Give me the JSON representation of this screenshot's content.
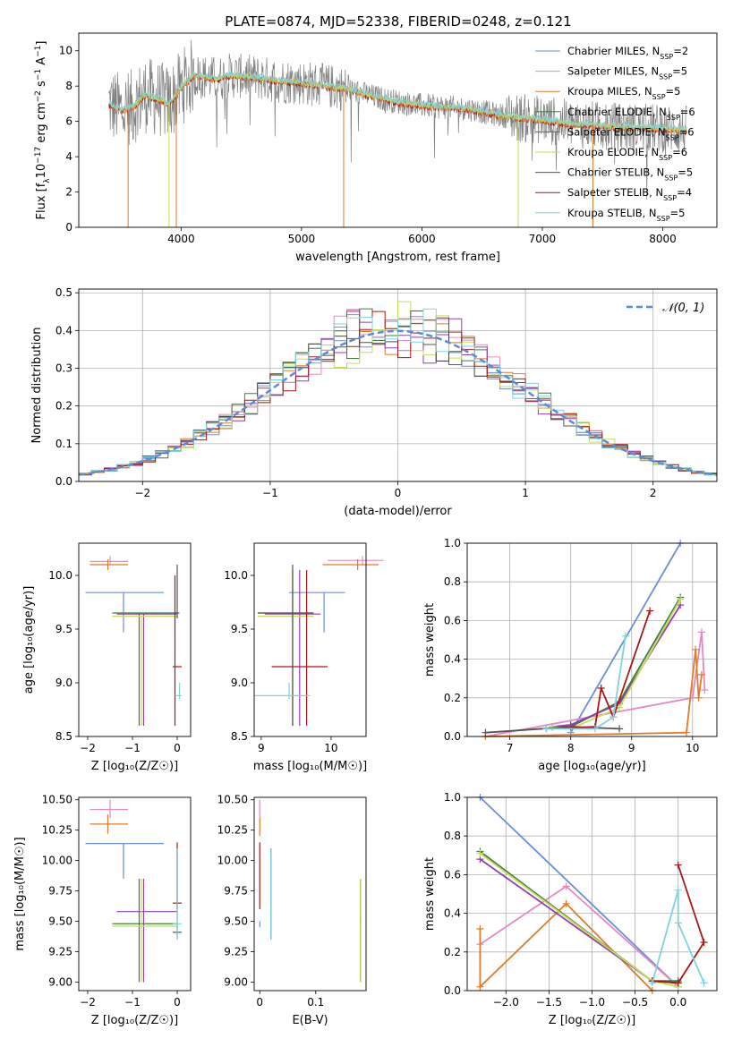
{
  "figure": {
    "title": "PLATE=0874, MJD=52338, FIBERID=0248, z=0.121"
  },
  "colors": {
    "Chabrier MILES": "#6a8fd6",
    "Salpeter MILES": "#e58ac0",
    "Kroupa MILES": "#e07b2a",
    "Chabrier ELODIE": "#3f7d3f",
    "Salpeter ELODIE": "#8e3fb0",
    "Kroupa ELODIE": "#c5dd55",
    "Chabrier STELIB": "#555555",
    "Salpeter STELIB": "#a81818",
    "Kroupa STELIB": "#7fd3dd"
  },
  "chart_data": [
    {
      "id": "spectrum",
      "type": "line",
      "xlabel": "wavelength [Angstrom, rest frame]",
      "ylabel": "Flux [f_λ 10^-17 erg cm^-2 s^-1 A^-1]",
      "xlim": [
        3150,
        8450
      ],
      "ylim": [
        0,
        11
      ],
      "xticks": [
        4000,
        5000,
        6000,
        7000,
        8000
      ],
      "yticks": [
        0,
        2,
        4,
        6,
        8,
        10
      ],
      "legend_placement": "top-right",
      "series": [
        {
          "name": "Chabrier MILES, N_SSP=2"
        },
        {
          "name": "Salpeter MILES, N_SSP=5"
        },
        {
          "name": "Kroupa MILES, N_SSP=5"
        },
        {
          "name": "Chabrier ELODIE, N_SSP=6"
        },
        {
          "name": "Salpeter ELODIE, N_SSP=6"
        },
        {
          "name": "Kroupa ELODIE, N_SSP=6"
        },
        {
          "name": "Chabrier STELIB, N_SSP=5"
        },
        {
          "name": "Salpeter STELIB, N_SSP=4"
        },
        {
          "name": "Kroupa STELIB, N_SSP=5"
        }
      ],
      "continuum": [
        [
          3400,
          7.0
        ],
        [
          3500,
          6.6
        ],
        [
          3600,
          6.8
        ],
        [
          3700,
          7.5
        ],
        [
          3800,
          7.3
        ],
        [
          3900,
          7.0
        ],
        [
          4000,
          7.9
        ],
        [
          4100,
          8.6
        ],
        [
          4200,
          8.5
        ],
        [
          4300,
          8.4
        ],
        [
          4400,
          8.6
        ],
        [
          4600,
          8.5
        ],
        [
          4800,
          8.3
        ],
        [
          5000,
          8.2
        ],
        [
          5200,
          8.0
        ],
        [
          5400,
          7.8
        ],
        [
          5600,
          7.4
        ],
        [
          5800,
          7.1
        ],
        [
          6000,
          6.9
        ],
        [
          6200,
          6.8
        ],
        [
          6400,
          6.7
        ],
        [
          6600,
          6.4
        ],
        [
          6800,
          6.2
        ],
        [
          7000,
          6.1
        ],
        [
          7200,
          5.9
        ],
        [
          7400,
          5.8
        ],
        [
          7600,
          5.7
        ],
        [
          8000,
          5.6
        ],
        [
          8200,
          5.5
        ]
      ],
      "data_range": [
        3400,
        8200
      ]
    },
    {
      "id": "residuals",
      "type": "histogram",
      "xlabel": "(data-model)/error",
      "ylabel": "Normed distribution",
      "xlim": [
        -2.5,
        2.5
      ],
      "ylim": [
        0,
        0.51
      ],
      "xticks": [
        -2,
        -1,
        0,
        1,
        2
      ],
      "yticks": [
        0.0,
        0.1,
        0.2,
        0.3,
        0.4,
        0.5
      ],
      "grid": true,
      "legend_placement": "top-right",
      "legend": "𝒩(0, 1)",
      "bin_width": 0.1
    },
    {
      "id": "age-vs-Z",
      "type": "scatter",
      "xlabel": "Z [log10(Z/Z☉)]",
      "ylabel": "age [log10(age/yr)]",
      "xlim": [
        -2.2,
        0.3
      ],
      "ylim": [
        8.5,
        10.3
      ],
      "xticks": [
        -2,
        -1,
        0
      ],
      "yticks": [
        8.5,
        9.0,
        9.5,
        10.0
      ]
    },
    {
      "id": "age-vs-mass",
      "type": "scatter",
      "xlabel": "mass [log10(M/M☉)]",
      "ylabel": "",
      "xlim": [
        8.9,
        10.5
      ],
      "ylim": [
        8.5,
        10.3
      ],
      "xticks": [
        9,
        10
      ],
      "yticks": [
        8.5,
        9.0,
        9.5,
        10.0
      ]
    },
    {
      "id": "weight-vs-age",
      "type": "line",
      "xlabel": "age [log10(age/yr)]",
      "ylabel": "mass weight",
      "xlim": [
        6.3,
        10.4
      ],
      "ylim": [
        0,
        1.0
      ],
      "xticks": [
        7,
        8,
        9,
        10
      ],
      "yticks": [
        0.0,
        0.2,
        0.4,
        0.6,
        0.8,
        1.0
      ],
      "grid": true
    },
    {
      "id": "mass-vs-Z",
      "type": "scatter",
      "xlabel": "Z [log10(Z/Z☉)]",
      "ylabel": "mass [log10(M/M☉)]",
      "xlim": [
        -2.2,
        0.3
      ],
      "ylim": [
        8.93,
        10.52
      ],
      "xticks": [
        -2,
        -1,
        0
      ],
      "yticks": [
        9.0,
        9.25,
        9.5,
        9.75,
        10.0,
        10.25,
        10.5
      ]
    },
    {
      "id": "mass-vs-ebv",
      "type": "scatter",
      "xlabel": "E(B-V)",
      "ylabel": "",
      "xlim": [
        -0.01,
        0.19
      ],
      "ylim": [
        8.93,
        10.52
      ],
      "xticks": [
        0.0,
        0.1
      ],
      "yticks": [
        9.0,
        9.25,
        9.5,
        9.75,
        10.0,
        10.25,
        10.5
      ]
    },
    {
      "id": "weight-vs-Z",
      "type": "line",
      "xlabel": "Z [log10(Z/Z☉)]",
      "ylabel": "mass weight",
      "xlim": [
        -2.45,
        0.45
      ],
      "ylim": [
        0,
        1.0
      ],
      "xticks": [
        -2.0,
        -1.5,
        -1.0,
        -0.5,
        0.0
      ],
      "yticks": [
        0.0,
        0.2,
        0.4,
        0.6,
        0.8,
        1.0
      ],
      "grid": true
    }
  ],
  "models": [
    {
      "name": "Chabrier MILES",
      "age_Z": {
        "age": 9.84,
        "age_err": [
          9.47,
          9.84
        ],
        "Z": -1.2,
        "Z_err": [
          -2.05,
          -0.3
        ]
      },
      "age_mass": {
        "mass": 9.9,
        "mass_err": [
          9.85,
          10.15
        ],
        "age": 9.84,
        "age_err": [
          9.47,
          9.84
        ]
      },
      "mass_Z": {
        "mass": 10.14,
        "mass_err": [
          9.85,
          10.14
        ],
        "Z": -1.2,
        "Z_err": [
          -2.05,
          -0.3
        ]
      },
      "mass_ebv": {
        "mass": 9.5,
        "mass_err": [
          9.45,
          9.5
        ],
        "ebv": 0.0
      },
      "weights_age": [
        [
          8.0,
          0.02
        ],
        [
          9.8,
          1.0
        ]
      ],
      "weights_Z": [
        [
          -2.3,
          1.0
        ],
        [
          0.0,
          0.02
        ]
      ]
    },
    {
      "name": "Salpeter MILES",
      "age_Z": {
        "age": 10.13,
        "age_err": [
          10.1,
          10.18
        ],
        "Z": -1.5,
        "Z_err": [
          -1.95,
          -1.1
        ]
      },
      "age_mass": {
        "mass": 10.45,
        "mass_err": [
          10.4,
          10.5
        ],
        "age": 10.14,
        "age_err": [
          10.1,
          10.18
        ]
      },
      "mass_Z": {
        "mass": 10.42,
        "mass_err": [
          10.35,
          10.5
        ],
        "Z": -1.5,
        "Z_err": [
          -1.95,
          -1.1
        ]
      },
      "mass_ebv": {
        "mass": 10.45,
        "mass_err": [
          10.35,
          10.5
        ],
        "ebv": 0.0
      },
      "weights_age": [
        [
          6.6,
          0.0
        ],
        [
          10.0,
          0.2
        ],
        [
          10.15,
          0.54
        ],
        [
          10.2,
          0.24
        ]
      ],
      "weights_Z": [
        [
          -2.3,
          0.24
        ],
        [
          -1.3,
          0.54
        ],
        [
          0.0,
          0.02
        ]
      ]
    },
    {
      "name": "Kroupa MILES",
      "age_Z": {
        "age": 10.1,
        "age_err": [
          10.05,
          10.15
        ],
        "Z": -1.55,
        "Z_err": [
          -1.95,
          -1.1
        ]
      },
      "age_mass": {
        "mass": 10.38,
        "mass_err": [
          10.3,
          10.45
        ],
        "age": 10.1,
        "age_err": [
          10.05,
          10.15
        ]
      },
      "mass_Z": {
        "mass": 10.3,
        "mass_err": [
          10.22,
          10.38
        ],
        "Z": -1.55,
        "Z_err": [
          -1.95,
          -1.1
        ]
      },
      "mass_ebv": {
        "mass": 10.3,
        "mass_err": [
          10.2,
          10.35
        ],
        "ebv": 0.0
      },
      "weights_age": [
        [
          6.6,
          0.0
        ],
        [
          9.9,
          0.02
        ],
        [
          10.05,
          0.45
        ],
        [
          10.1,
          0.2
        ],
        [
          10.15,
          0.32
        ]
      ],
      "weights_Z": [
        [
          -2.3,
          0.32
        ],
        [
          -2.3,
          0.02
        ],
        [
          -1.3,
          0.45
        ],
        [
          -0.3,
          0.0
        ]
      ]
    },
    {
      "name": "Chabrier ELODIE",
      "age_Z": {
        "age": 9.65,
        "age_err": [
          8.6,
          9.65
        ],
        "Z": -0.85,
        "Z_err": [
          -1.45,
          0.0
        ]
      },
      "age_mass": {
        "mass": 9.45,
        "mass_err": [
          9.0,
          9.85
        ],
        "age": 9.65,
        "age_err": [
          8.6,
          10.05
        ]
      },
      "mass_Z": {
        "mass": 9.48,
        "mass_err": [
          9.0,
          9.85
        ],
        "Z": -0.85,
        "Z_err": [
          -1.45,
          0.0
        ]
      },
      "mass_ebv": {
        "mass": 9.5,
        "mass_err": [
          9.45,
          9.55
        ],
        "ebv": 0.18
      },
      "weights_age": [
        [
          7.7,
          0.05
        ],
        [
          8.0,
          0.05
        ],
        [
          8.8,
          0.18
        ],
        [
          9.8,
          0.72
        ]
      ],
      "weights_Z": [
        [
          -2.3,
          0.72
        ],
        [
          -0.3,
          0.05
        ],
        [
          0.0,
          0.05
        ]
      ]
    },
    {
      "name": "Salpeter ELODIE",
      "age_Z": {
        "age": 9.64,
        "age_err": [
          8.6,
          9.64
        ],
        "Z": -0.75,
        "Z_err": [
          -1.35,
          0.0
        ]
      },
      "age_mass": {
        "mass": 9.55,
        "mass_err": [
          8.6,
          10.05
        ],
        "age": 9.64,
        "age_err": [
          8.6,
          10.05
        ]
      },
      "mass_Z": {
        "mass": 9.58,
        "mass_err": [
          9.0,
          9.85
        ],
        "Z": -0.75,
        "Z_err": [
          -1.35,
          0.0
        ]
      },
      "mass_ebv": {
        "mass": 9.85,
        "mass_err": [
          9.0,
          9.85
        ],
        "ebv": 0.18
      },
      "weights_age": [
        [
          7.7,
          0.05
        ],
        [
          8.0,
          0.06
        ],
        [
          8.8,
          0.17
        ],
        [
          9.8,
          0.68
        ]
      ],
      "weights_Z": [
        [
          -2.3,
          0.68
        ],
        [
          -0.3,
          0.05
        ],
        [
          0.0,
          0.04
        ]
      ]
    },
    {
      "name": "Kroupa ELODIE",
      "age_Z": {
        "age": 9.62,
        "age_err": [
          8.6,
          9.62
        ],
        "Z": -0.8,
        "Z_err": [
          -1.45,
          0.0
        ]
      },
      "age_mass": {
        "mass": 9.45,
        "mass_err": [
          9.0,
          9.85
        ],
        "age": 9.62,
        "age_err": [
          8.6,
          10.05
        ]
      },
      "mass_Z": {
        "mass": 9.46,
        "mass_err": [
          9.0,
          9.85
        ],
        "Z": -0.8,
        "Z_err": [
          -1.45,
          0.0
        ]
      },
      "mass_ebv": {
        "mass": 9.8,
        "mass_err": [
          9.0,
          9.85
        ],
        "ebv": 0.18
      },
      "weights_age": [
        [
          7.7,
          0.05
        ],
        [
          8.0,
          0.04
        ],
        [
          8.8,
          0.15
        ],
        [
          9.8,
          0.71
        ]
      ],
      "weights_Z": [
        [
          -2.3,
          0.71
        ],
        [
          -0.3,
          0.05
        ],
        [
          0.0,
          0.02
        ]
      ]
    },
    {
      "name": "Chabrier STELIB",
      "age_Z": {
        "age": 9.65,
        "age_err": [
          9.6,
          10.1
        ],
        "Z": 0.0,
        "Z_err": [
          -0.05,
          0.05
        ]
      },
      "age_mass": {
        "mass": 9.45,
        "mass_err": [
          9.0,
          10.05
        ],
        "age": 9.65,
        "age_err": [
          8.6,
          10.1
        ]
      },
      "mass_Z": {
        "mass": 9.41,
        "mass_err": [
          9.35,
          10.1
        ],
        "Z": 0.0,
        "Z_err": [
          -0.1,
          0.1
        ]
      },
      "mass_ebv": {
        "mass": 9.4,
        "mass_err": [
          9.35,
          10.1
        ],
        "ebv": 0.02
      },
      "weights_age": [
        [
          6.6,
          0.02
        ],
        [
          8.0,
          0.05
        ],
        [
          8.8,
          0.04
        ]
      ],
      "weights_Z": [
        [
          -0.3,
          0.05
        ],
        [
          0.0,
          0.04
        ]
      ]
    },
    {
      "name": "Salpeter STELIB",
      "age_Z": {
        "age": 9.15,
        "age_err": [
          8.6,
          10.0
        ],
        "Z": -0.05,
        "Z_err": [
          -0.1,
          0.1
        ]
      },
      "age_mass": {
        "mass": 9.65,
        "mass_err": [
          9.6,
          10.05
        ],
        "age": 9.15,
        "age_err": [
          8.6,
          10.05
        ]
      },
      "mass_Z": {
        "mass": 9.65,
        "mass_err": [
          9.6,
          10.15
        ],
        "Z": 0.0,
        "Z_err": [
          -0.1,
          0.1
        ]
      },
      "mass_ebv": {
        "mass": 9.6,
        "mass_err": [
          9.6,
          10.15
        ],
        "ebv": 0.0
      },
      "weights_age": [
        [
          7.6,
          0.04
        ],
        [
          8.4,
          0.05
        ],
        [
          8.5,
          0.25
        ],
        [
          8.7,
          0.1
        ],
        [
          9.3,
          0.65
        ]
      ],
      "weights_Z": [
        [
          -0.3,
          0.05
        ],
        [
          0.0,
          0.04
        ],
        [
          0.3,
          0.25
        ],
        [
          0.0,
          0.65
        ]
      ]
    },
    {
      "name": "Kroupa STELIB",
      "age_Z": {
        "age": 8.88,
        "age_err": [
          8.85,
          9.0
        ],
        "Z": 0.05,
        "Z_err": [
          -0.05,
          0.1
        ]
      },
      "age_mass": {
        "mass": 9.4,
        "mass_err": [
          8.6,
          10.1
        ],
        "age": 8.88,
        "age_err": [
          8.85,
          9.0
        ]
      },
      "mass_Z": {
        "mass": 9.48,
        "mass_err": [
          9.35,
          10.1
        ],
        "Z": 0.0,
        "Z_err": [
          -0.1,
          0.1
        ]
      },
      "mass_ebv": {
        "mass": 9.8,
        "mass_err": [
          9.35,
          10.1
        ],
        "ebv": 0.02
      },
      "weights_age": [
        [
          7.6,
          0.04
        ],
        [
          8.4,
          0.04
        ],
        [
          8.7,
          0.1
        ],
        [
          8.9,
          0.52
        ]
      ],
      "weights_Z": [
        [
          -0.3,
          0.04
        ],
        [
          0.0,
          0.52
        ],
        [
          0.0,
          0.35
        ],
        [
          0.3,
          0.04
        ]
      ]
    }
  ]
}
